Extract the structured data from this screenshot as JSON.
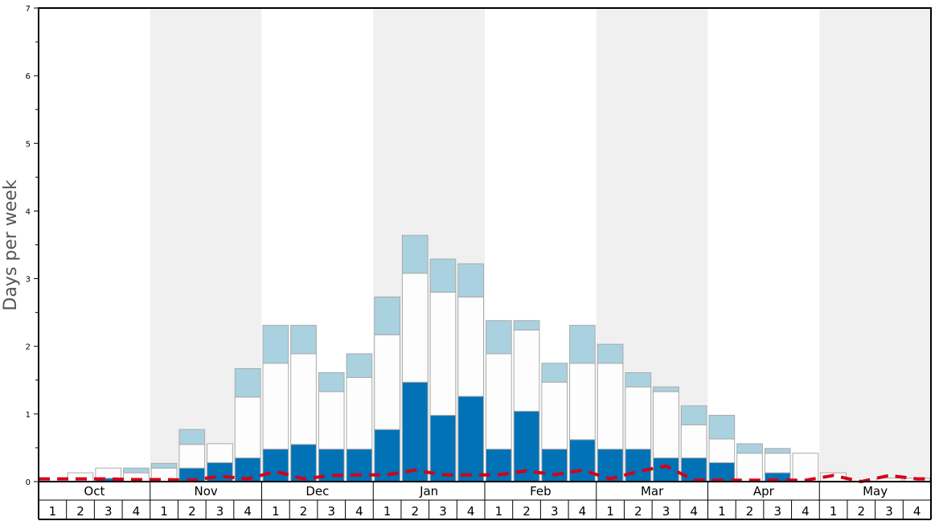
{
  "chart_data": {
    "type": "bar",
    "ylabel": "Days per week",
    "ylim": [
      0,
      7
    ],
    "yticks": [
      0,
      1,
      2,
      3,
      4,
      5,
      6,
      7
    ],
    "months": [
      "Oct",
      "Nov",
      "Dec",
      "Jan",
      "Feb",
      "Mar",
      "Apr",
      "May"
    ],
    "weeks": [
      "1",
      "2",
      "3",
      "4"
    ],
    "colors": {
      "heavy": "#0072b5",
      "medium": "#fdfdfd",
      "light": "#aad1df",
      "dashed_line": "#d4001a",
      "band": "#f0f0f0",
      "bar_border": "#aaaaaa"
    },
    "series": [
      {
        "values": [
          0.0,
          0.0,
          0.05,
          0.0,
          0.0,
          0.2,
          0.28,
          0.35,
          0.48,
          0.55,
          0.48,
          0.48,
          0.77,
          1.47,
          0.98,
          1.26,
          0.48,
          1.04,
          0.48,
          0.62,
          0.48,
          0.48,
          0.35,
          0.35,
          0.28,
          0.0,
          0.13,
          0.0,
          0.0,
          0.0,
          0.0,
          0.0
        ]
      },
      {
        "values": [
          0.0,
          0.13,
          0.15,
          0.13,
          0.2,
          0.35,
          0.28,
          0.9,
          1.27,
          1.34,
          0.85,
          1.06,
          1.4,
          1.61,
          1.82,
          1.47,
          1.41,
          1.2,
          0.99,
          1.13,
          1.27,
          0.92,
          0.98,
          0.49,
          0.35,
          0.42,
          0.29,
          0.42,
          0.13,
          0.0,
          0.05,
          0.05
        ]
      },
      {
        "values": [
          0.0,
          0.0,
          0.0,
          0.07,
          0.07,
          0.22,
          0.0,
          0.42,
          0.56,
          0.42,
          0.28,
          0.35,
          0.56,
          0.56,
          0.49,
          0.49,
          0.49,
          0.14,
          0.28,
          0.56,
          0.28,
          0.21,
          0.07,
          0.28,
          0.35,
          0.14,
          0.07,
          0.0,
          0.0,
          0.0,
          0.0,
          0.0
        ]
      },
      {
        "values": [
          0.04,
          0.04,
          0.04,
          0.03,
          0.03,
          0.02,
          0.08,
          0.04,
          0.15,
          0.04,
          0.09,
          0.1,
          0.1,
          0.17,
          0.1,
          0.1,
          0.1,
          0.16,
          0.1,
          0.17,
          0.04,
          0.15,
          0.23,
          0.02,
          0.02,
          0.02,
          0.02,
          0.02,
          0.09,
          0.0,
          0.09,
          0.04
        ]
      }
    ]
  }
}
